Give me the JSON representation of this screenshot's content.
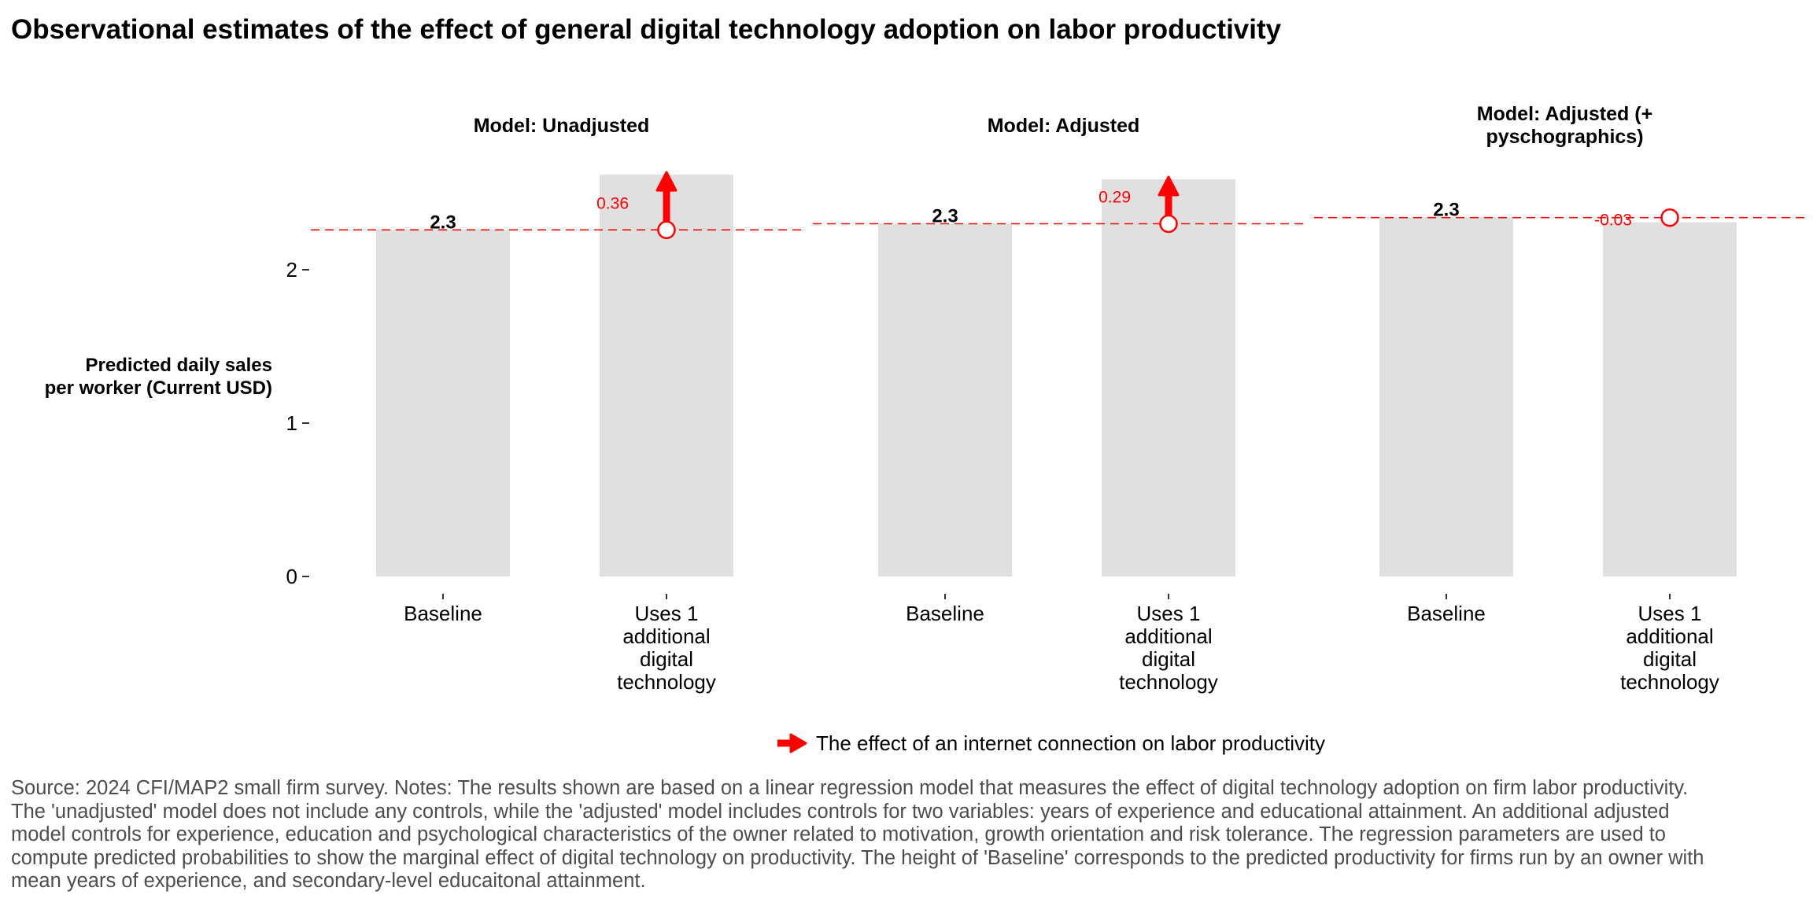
{
  "title": "Observational estimates of the effect of general digital technology adoption on labor productivity",
  "caption": "Source: 2024 CFI/MAP2 small firm survey. Notes: The results shown are based on a linear regression model that measures the effect of digital technology adoption on firm labor productivity. The 'unadjusted' model does not include any controls, while the 'adjusted' model includes controls for two variables: years of experience and educational attainment. An additional adjusted model controls for experience, education and psychological characteristics of the owner related to motivation, growth orientation and risk tolerance. The regression parameters are used to compute predicted probabilities to show the marginal effect of digital technology on productivity. The height of 'Baseline' corresponds to the predicted productivity for firms run by an owner with mean years of experience, and secondary-level educaitonal attainment.",
  "colors": {
    "bar": "#e0e0e0",
    "effect": "#ff0000",
    "text": "#000000",
    "caption": "#4d4d4d"
  },
  "chart_data": {
    "type": "bar",
    "ylabel": [
      "Predicted daily sales",
      "per worker (Current USD)"
    ],
    "ylim": [
      0,
      2.7
    ],
    "yticks": [
      0,
      1,
      2
    ],
    "categories": [
      [
        "Baseline"
      ],
      [
        "Uses 1",
        "additional",
        "digital",
        "technology"
      ]
    ],
    "grid": false,
    "legend": {
      "position": "bottom",
      "label": "The effect of an internet connection on labor productivity",
      "icon": "red-arrow-icon"
    },
    "facets": [
      {
        "title": [
          "Model: Unadjusted"
        ],
        "baseline": 2.26,
        "baseline_label": "2.3",
        "treated": 2.62,
        "effect": 0.36,
        "effect_label": "0.36"
      },
      {
        "title": [
          "Model: Adjusted"
        ],
        "baseline": 2.3,
        "baseline_label": "2.3",
        "treated": 2.59,
        "effect": 0.29,
        "effect_label": "0.29"
      },
      {
        "title": [
          "Model: Adjusted (+",
          "pyschographics)"
        ],
        "baseline": 2.34,
        "baseline_label": "2.3",
        "treated": 2.31,
        "effect": -0.03,
        "effect_label": "-0.03"
      }
    ]
  }
}
